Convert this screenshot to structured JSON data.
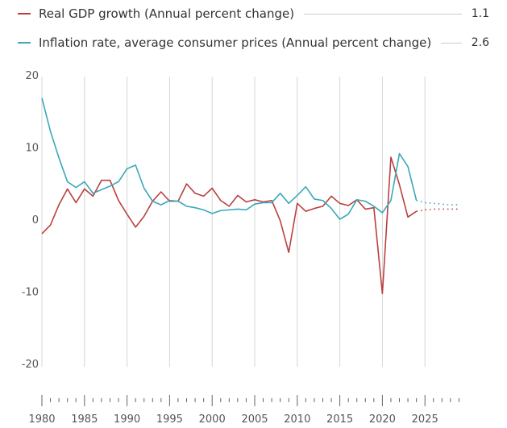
{
  "chart_data": {
    "type": "line",
    "title": "",
    "xlabel": "",
    "ylabel": "",
    "xlim": [
      1980,
      2029
    ],
    "ylim": [
      -20,
      20
    ],
    "yticks": [
      20,
      10,
      0,
      -10,
      -20
    ],
    "xticks": [
      1980,
      1985,
      1990,
      1995,
      2000,
      2005,
      2010,
      2015,
      2020,
      2025
    ],
    "grid": "vertical every 5 years",
    "legend_placement": "top",
    "x": [
      1980,
      1981,
      1982,
      1983,
      1984,
      1985,
      1986,
      1987,
      1988,
      1989,
      1990,
      1991,
      1992,
      1993,
      1994,
      1995,
      1996,
      1997,
      1998,
      1999,
      2000,
      2001,
      2002,
      2003,
      2004,
      2005,
      2006,
      2007,
      2008,
      2009,
      2010,
      2011,
      2012,
      2013,
      2014,
      2015,
      2016,
      2017,
      2018,
      2019,
      2020,
      2021,
      2022,
      2023,
      2024
    ],
    "projection_x": [
      2024,
      2025,
      2026,
      2027,
      2028,
      2029
    ],
    "series": [
      {
        "name": "Real GDP growth (Annual percent change)",
        "latest": "1.1",
        "color": "#b9413f",
        "values": [
          -2.0,
          -0.8,
          2.0,
          4.2,
          2.3,
          4.2,
          3.2,
          5.4,
          5.4,
          2.6,
          0.7,
          -1.1,
          0.4,
          2.5,
          3.8,
          2.5,
          2.5,
          4.9,
          3.6,
          3.2,
          4.3,
          2.6,
          1.8,
          3.3,
          2.4,
          2.7,
          2.4,
          2.6,
          -0.2,
          -4.6,
          2.2,
          1.1,
          1.5,
          1.8,
          3.2,
          2.2,
          1.9,
          2.7,
          1.4,
          1.6,
          -10.3,
          8.6,
          4.8,
          0.3,
          1.1
        ],
        "projection": [
          1.1,
          1.3,
          1.4,
          1.4,
          1.4,
          1.4
        ]
      },
      {
        "name": "Inflation rate, average consumer prices (Annual percent change)",
        "latest": "2.6",
        "color": "#3aa8b8",
        "values": [
          16.8,
          12.2,
          8.5,
          5.2,
          4.4,
          5.2,
          3.6,
          4.1,
          4.6,
          5.2,
          7.0,
          7.5,
          4.3,
          2.5,
          2.0,
          2.6,
          2.5,
          1.8,
          1.6,
          1.3,
          0.8,
          1.2,
          1.3,
          1.4,
          1.3,
          2.1,
          2.3,
          2.3,
          3.6,
          2.2,
          3.3,
          4.5,
          2.8,
          2.6,
          1.5,
          0.0,
          0.7,
          2.7,
          2.5,
          1.8,
          0.9,
          2.6,
          9.1,
          7.3,
          2.6
        ],
        "projection": [
          2.6,
          2.3,
          2.2,
          2.1,
          2.0,
          2.0
        ]
      }
    ]
  }
}
